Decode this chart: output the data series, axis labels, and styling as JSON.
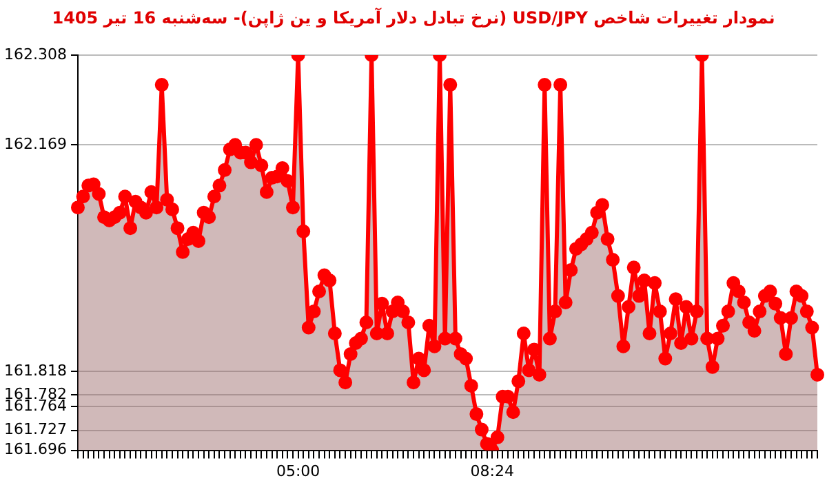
{
  "chart_data": {
    "type": "area",
    "title": "نمودار تغییرات شاخص USD/JPY (نرخ تبادل دلار آمریکا و ین ژاپن)- سه‌شنبه  16 تیر 1405",
    "categories": [
      null,
      null,
      null,
      null,
      null,
      null,
      null,
      null,
      null,
      null,
      null,
      null,
      null,
      null,
      null,
      null,
      null,
      null,
      null,
      null,
      null,
      null,
      null,
      null,
      null,
      null,
      null,
      null,
      null,
      null,
      null,
      null,
      null,
      null,
      null,
      null,
      null,
      null,
      null,
      null,
      null,
      null,
      "05:00",
      null,
      null,
      null,
      null,
      null,
      null,
      null,
      null,
      null,
      null,
      null,
      null,
      null,
      null,
      null,
      null,
      null,
      null,
      null,
      null,
      null,
      null,
      null,
      null,
      null,
      null,
      null,
      null,
      null,
      null,
      null,
      null,
      null,
      null,
      null,
      null,
      "08:24",
      null,
      null,
      null,
      null,
      null,
      null,
      null,
      null,
      null,
      null,
      null,
      null,
      null,
      null,
      null,
      null,
      null,
      null,
      null,
      null,
      null,
      null,
      null,
      null,
      null,
      null,
      null,
      null,
      null,
      null,
      null,
      null,
      null,
      null,
      null,
      null,
      null,
      null,
      null,
      null,
      null,
      null,
      null,
      null,
      null,
      null,
      null,
      null,
      null,
      null,
      null,
      null,
      null,
      null,
      null,
      null,
      null,
      null,
      null,
      null,
      null,
      null
    ],
    "series": [
      {
        "color": "#ff0000",
        "values": [
          162.072,
          162.089,
          162.106,
          162.108,
          162.093,
          162.057,
          162.052,
          162.057,
          162.064,
          162.089,
          162.04,
          162.081,
          162.072,
          162.064,
          162.096,
          162.072,
          162.262,
          162.084,
          162.069,
          162.04,
          162.003,
          162.023,
          162.033,
          162.02,
          162.064,
          162.057,
          162.089,
          162.106,
          162.13,
          162.162,
          162.169,
          162.157,
          162.157,
          162.142,
          162.169,
          162.137,
          162.096,
          162.118,
          162.12,
          162.133,
          162.113,
          162.072,
          162.308,
          162.035,
          161.886,
          161.911,
          161.942,
          161.967,
          161.959,
          161.877,
          161.82,
          161.801,
          161.845,
          161.862,
          161.869,
          161.894,
          162.308,
          161.877,
          161.923,
          161.877,
          161.911,
          161.925,
          161.911,
          161.894,
          161.801,
          161.838,
          161.82,
          161.889,
          161.857,
          162.308,
          161.869,
          162.262,
          161.869,
          161.845,
          161.838,
          161.796,
          161.752,
          161.728,
          161.706,
          161.696,
          161.716,
          161.779,
          161.779,
          161.755,
          161.803,
          161.877,
          161.82,
          161.852,
          161.813,
          162.262,
          161.869,
          161.911,
          162.262,
          161.925,
          161.975,
          162.008,
          162.015,
          162.023,
          162.033,
          162.064,
          162.076,
          162.023,
          161.991,
          161.935,
          161.857,
          161.918,
          161.979,
          161.935,
          161.959,
          161.877,
          161.955,
          161.911,
          161.838,
          161.877,
          161.93,
          161.862,
          161.918,
          161.869,
          161.911,
          162.308,
          161.869,
          161.825,
          161.869,
          161.889,
          161.911,
          161.955,
          161.942,
          161.925,
          161.894,
          161.881,
          161.911,
          161.935,
          161.942,
          161.923,
          161.901,
          161.845,
          161.901,
          161.942,
          161.935,
          161.911,
          161.886,
          161.813
        ]
      }
    ],
    "ylim": [
      161.696,
      162.308
    ],
    "yticks": [
      161.696,
      161.727,
      161.764,
      161.782,
      161.818,
      162.169,
      162.308
    ],
    "grid": "y",
    "legend": false,
    "marker": "circle"
  }
}
